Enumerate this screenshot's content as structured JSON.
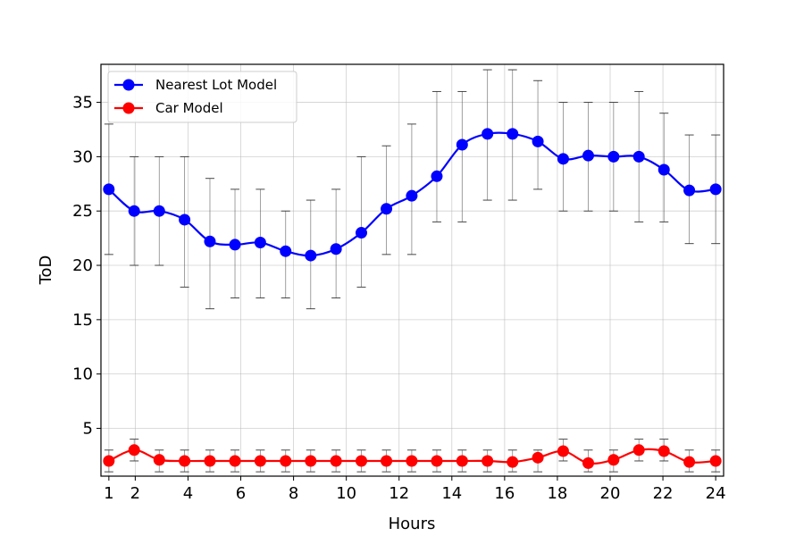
{
  "chart_data": {
    "type": "line",
    "title": "",
    "xlabel": "Hours",
    "ylabel": "ToD",
    "xlim": [
      0.7,
      24.3
    ],
    "ylim": [
      0.6,
      38.5
    ],
    "xticks": [
      1,
      2,
      4,
      6,
      8,
      10,
      12,
      14,
      16,
      18,
      20,
      22,
      24
    ],
    "yticks": [
      5,
      10,
      15,
      20,
      25,
      30,
      35
    ],
    "grid": true,
    "legend": "top-left",
    "x": [
      1,
      1.96,
      2.91,
      3.87,
      4.83,
      5.78,
      6.74,
      7.7,
      8.65,
      9.61,
      10.57,
      11.52,
      12.48,
      13.43,
      14.39,
      15.35,
      16.3,
      17.26,
      18.22,
      19.17,
      20.13,
      21.09,
      22.04,
      23.0,
      24.0
    ],
    "series": [
      {
        "name": "Nearest Lot Model",
        "color": "#0000ff",
        "values": [
          27.0,
          25.0,
          25.0,
          24.2,
          22.2,
          21.9,
          22.1,
          21.3,
          20.9,
          21.5,
          23.0,
          25.2,
          26.4,
          28.2,
          31.1,
          32.1,
          32.1,
          31.4,
          29.8,
          30.1,
          30.0,
          30.0,
          28.8,
          26.9,
          27.0
        ],
        "err_low": [
          21,
          20,
          20,
          18,
          16,
          17,
          17,
          17,
          16,
          17,
          18,
          21,
          21,
          24,
          24,
          26,
          26,
          27,
          25,
          25,
          25,
          24,
          24,
          22,
          22
        ],
        "err_high": [
          33,
          30,
          30,
          30,
          28,
          27,
          27,
          25,
          26,
          27,
          30,
          31,
          33,
          36,
          36,
          38,
          38,
          37,
          35,
          35,
          35,
          36,
          34,
          32,
          32
        ]
      },
      {
        "name": "Car Model",
        "color": "#ff0000",
        "values": [
          2.0,
          3.0,
          2.1,
          2.0,
          2.0,
          2.0,
          2.0,
          2.0,
          2.0,
          2.0,
          2.0,
          2.0,
          2.0,
          2.0,
          2.0,
          2.0,
          1.9,
          2.3,
          2.9,
          1.8,
          2.1,
          3.0,
          2.9,
          1.9,
          2.0
        ],
        "err_low": [
          1,
          2,
          1,
          1,
          1,
          1,
          1,
          1,
          1,
          1,
          1,
          1,
          1,
          1,
          1,
          1,
          1,
          1,
          2,
          1,
          1,
          2,
          2,
          1,
          1
        ],
        "err_high": [
          3,
          4,
          3,
          3,
          3,
          3,
          3,
          3,
          3,
          3,
          3,
          3,
          3,
          3,
          3,
          3,
          3,
          3,
          4,
          3,
          3,
          4,
          4,
          3,
          3
        ]
      }
    ]
  }
}
